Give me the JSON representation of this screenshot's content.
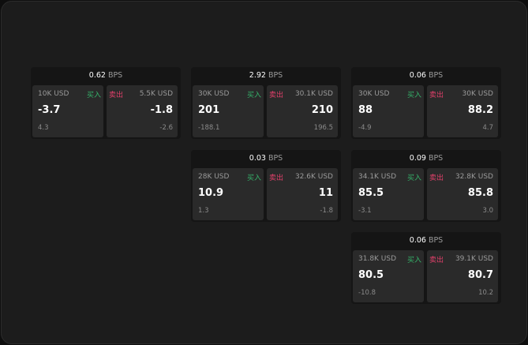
{
  "unit": "BPS",
  "buy_label": "买入",
  "sell_label": "卖出",
  "colors": {
    "buy": "#35b36a",
    "sell": "#e0406a",
    "background": "#1c1c1c",
    "cell": "#2a2a2a"
  },
  "widgets": [
    {
      "spread": "0.62",
      "bid": {
        "size": "10K USD",
        "price": "-3.7",
        "change": "4.3"
      },
      "ask": {
        "size": "5.5K USD",
        "price": "-1.8",
        "change": "-2.6"
      }
    },
    {
      "spread": "2.92",
      "bid": {
        "size": "30K USD",
        "price": "201",
        "change": "-188.1"
      },
      "ask": {
        "size": "30.1K USD",
        "price": "210",
        "change": "196.5"
      }
    },
    {
      "spread": "0.06",
      "bid": {
        "size": "30K USD",
        "price": "88",
        "change": "-4.9"
      },
      "ask": {
        "size": "30K USD",
        "price": "88.2",
        "change": "4.7"
      }
    },
    {
      "spread": "0.03",
      "bid": {
        "size": "28K USD",
        "price": "10.9",
        "change": "1.3"
      },
      "ask": {
        "size": "32.6K USD",
        "price": "11",
        "change": "-1.8"
      }
    },
    {
      "spread": "0.09",
      "bid": {
        "size": "34.1K USD",
        "price": "85.5",
        "change": "-3.1"
      },
      "ask": {
        "size": "32.8K USD",
        "price": "85.8",
        "change": "3.0"
      }
    },
    {
      "spread": "0.06",
      "bid": {
        "size": "31.8K USD",
        "price": "80.5",
        "change": "-10.8"
      },
      "ask": {
        "size": "39.1K USD",
        "price": "80.7",
        "change": "10.2"
      }
    }
  ]
}
